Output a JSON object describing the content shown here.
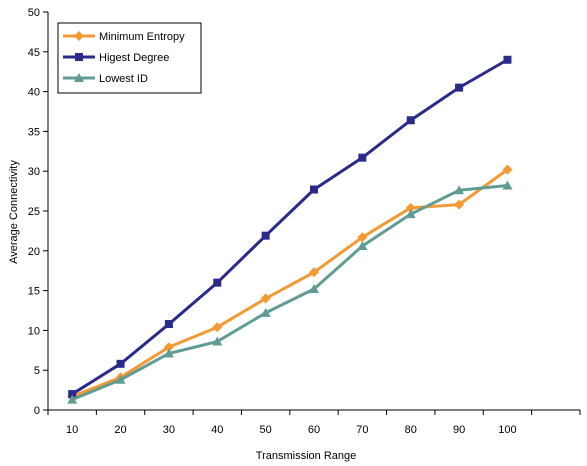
{
  "chart_data": {
    "type": "line",
    "title": "",
    "xlabel": "Transmission Range",
    "ylabel": "Average Connectivity",
    "categories": [
      "10",
      "20",
      "30",
      "40",
      "50",
      "60",
      "70",
      "80",
      "90",
      "100"
    ],
    "ylim": [
      0,
      50
    ],
    "yticks": [
      0,
      5,
      10,
      15,
      20,
      25,
      30,
      35,
      40,
      45,
      50
    ],
    "grid": false,
    "legend_position": "top-left",
    "series": [
      {
        "name": "Minimum Entropy",
        "color": "#f39a35",
        "marker": "diamond",
        "values": [
          1.7,
          4.1,
          7.9,
          10.4,
          14.0,
          17.3,
          21.7,
          25.4,
          25.8,
          30.2
        ]
      },
      {
        "name": "Higest Degree",
        "color": "#2a2a8a",
        "marker": "square",
        "values": [
          2.0,
          5.8,
          10.8,
          16.0,
          21.9,
          27.7,
          31.7,
          36.4,
          40.5,
          44.0
        ]
      },
      {
        "name": "Lowest ID",
        "color": "#5f9c94",
        "marker": "triangle",
        "values": [
          1.3,
          3.8,
          7.1,
          8.6,
          12.2,
          15.2,
          20.6,
          24.6,
          27.6,
          28.2
        ]
      }
    ]
  }
}
